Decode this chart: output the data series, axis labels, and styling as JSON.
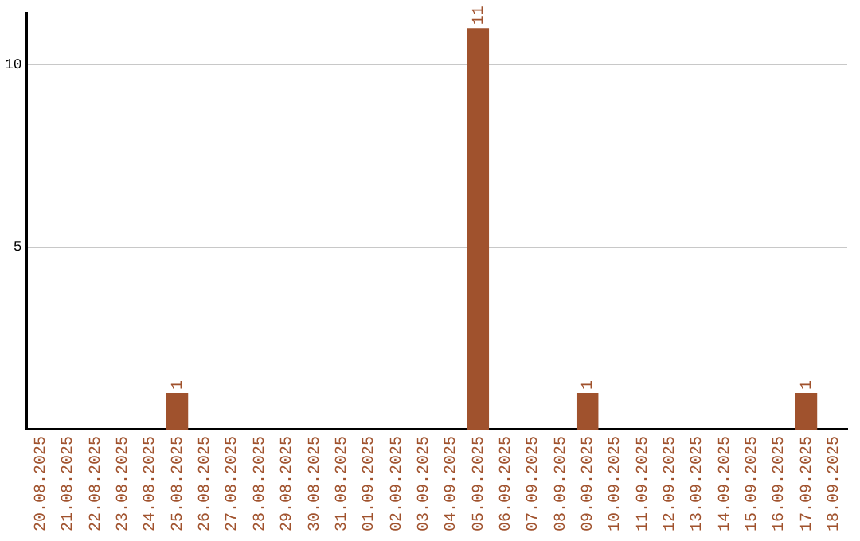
{
  "chart_data": {
    "type": "bar",
    "categories": [
      "20.08.2025",
      "21.08.2025",
      "22.08.2025",
      "23.08.2025",
      "24.08.2025",
      "25.08.2025",
      "26.08.2025",
      "27.08.2025",
      "28.08.2025",
      "29.08.2025",
      "30.08.2025",
      "31.08.2025",
      "01.09.2025",
      "02.09.2025",
      "03.09.2025",
      "04.09.2025",
      "05.09.2025",
      "06.09.2025",
      "07.09.2025",
      "08.09.2025",
      "09.09.2025",
      "10.09.2025",
      "11.09.2025",
      "12.09.2025",
      "13.09.2025",
      "14.09.2025",
      "15.09.2025",
      "16.09.2025",
      "17.09.2025",
      "18.09.2025"
    ],
    "values": [
      0,
      0,
      0,
      0,
      0,
      1,
      0,
      0,
      0,
      0,
      0,
      0,
      0,
      0,
      0,
      0,
      11,
      0,
      0,
      0,
      1,
      0,
      0,
      0,
      0,
      0,
      0,
      0,
      1,
      0
    ],
    "value_labels": [
      null,
      null,
      null,
      null,
      null,
      "1",
      null,
      null,
      null,
      null,
      null,
      null,
      null,
      null,
      null,
      null,
      "11",
      null,
      null,
      null,
      "1",
      null,
      null,
      null,
      null,
      null,
      null,
      null,
      "1",
      null
    ],
    "color": "#a0522d",
    "ylim": [
      0,
      11.4
    ],
    "yticks": [
      5,
      10
    ],
    "grid": "y",
    "legend": false
  }
}
